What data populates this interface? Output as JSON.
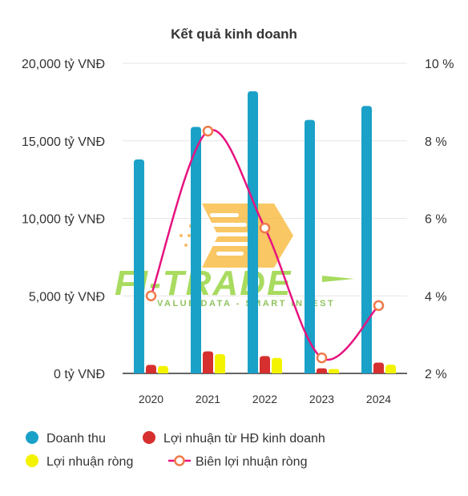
{
  "chart_data": {
    "type": "bar",
    "title": "Kết quả kinh doanh",
    "categories": [
      "2020",
      "2021",
      "2022",
      "2023",
      "2024"
    ],
    "series": [
      {
        "name": "Doanh thu",
        "type": "bar",
        "axis": "left",
        "color": "#1aa1c8",
        "values": [
          13800,
          15900,
          18200,
          16350,
          17250
        ]
      },
      {
        "name": "Lợi nhuận từ HĐ kinh doanh",
        "type": "bar",
        "axis": "left",
        "color": "#d62f2f",
        "values": [
          550,
          1420,
          1120,
          330,
          700
        ]
      },
      {
        "name": "Lợi nhuận ròng",
        "type": "bar",
        "axis": "left",
        "color": "#f3f300",
        "values": [
          480,
          1240,
          1000,
          280,
          560
        ]
      },
      {
        "name": "Biên lợi nhuận ròng",
        "type": "line",
        "axis": "right",
        "color": "#e6137f",
        "marker_color": "#f07a4a",
        "smooth": true,
        "values": [
          4.0,
          8.25,
          5.75,
          2.4,
          3.75
        ]
      }
    ],
    "left_axis": {
      "ticks": [
        "0 tỷ VNĐ",
        "5,000 tỷ VNĐ",
        "10,000 tỷ VNĐ",
        "15,000 tỷ VNĐ",
        "20,000 tỷ VNĐ"
      ],
      "tick_values": [
        0,
        5000,
        10000,
        15000,
        20000
      ],
      "ylim": [
        0,
        20000
      ]
    },
    "right_axis": {
      "ticks": [
        "2 %",
        "4 %",
        "6 %",
        "8 %",
        "10 %"
      ],
      "tick_values": [
        2,
        4,
        6,
        8,
        10
      ],
      "ylim": [
        2,
        10
      ]
    },
    "grid": true,
    "legend_position": "bottom",
    "watermark": {
      "text": "FI-TRADE",
      "subtext": "VALUE DATA - SMART INVEST"
    }
  }
}
